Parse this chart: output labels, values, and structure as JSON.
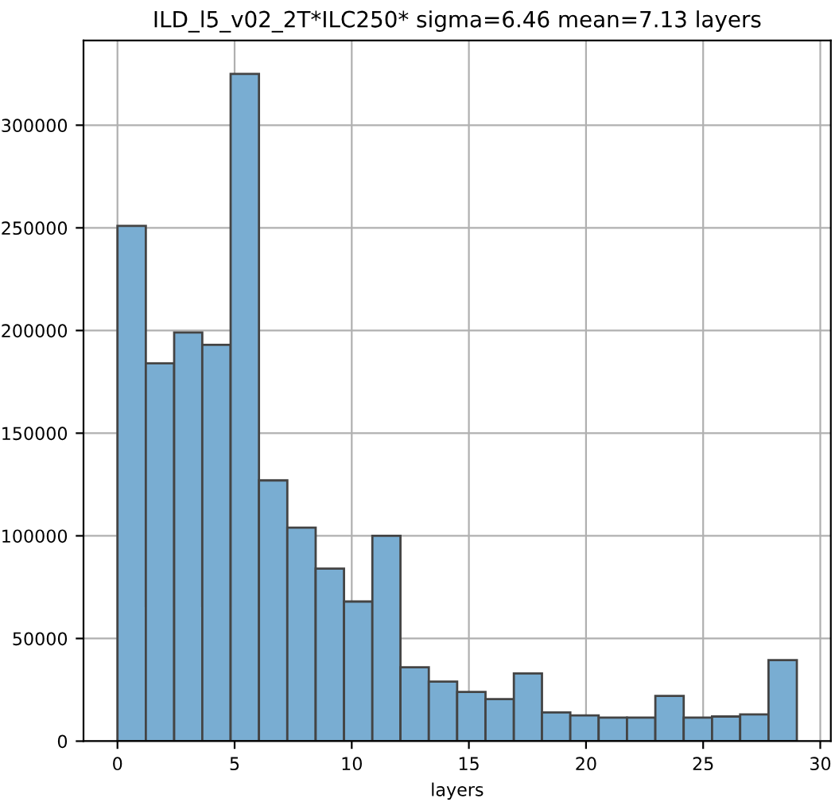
{
  "chart_data": {
    "type": "histogram",
    "title": "ILD_l5_v02_2T*ILC250* sigma=6.46 mean=7.13 layers",
    "xlabel": "layers",
    "bins": [
      0,
      1.21,
      2.42,
      3.62,
      4.83,
      6.04,
      7.25,
      8.46,
      9.67,
      10.88,
      12.08,
      13.29,
      14.5,
      15.71,
      16.92,
      18.12,
      19.33,
      20.54,
      21.75,
      22.96,
      24.17,
      25.38,
      26.58,
      27.79,
      29
    ],
    "values": [
      251000,
      184000,
      199000,
      193000,
      325000,
      127000,
      104000,
      84000,
      68000,
      100000,
      36000,
      29000,
      24000,
      20500,
      33000,
      14000,
      12500,
      11500,
      11500,
      22000,
      11500,
      12000,
      13000,
      39500
    ],
    "color": "#79add2",
    "xlim": [
      -1.45,
      30.45
    ],
    "xticks": [
      0,
      5,
      10,
      15,
      20,
      25,
      30
    ],
    "ylim": [
      0,
      341250
    ],
    "yticks": [
      0,
      50000,
      100000,
      150000,
      200000,
      250000,
      300000
    ],
    "grid": true
  }
}
